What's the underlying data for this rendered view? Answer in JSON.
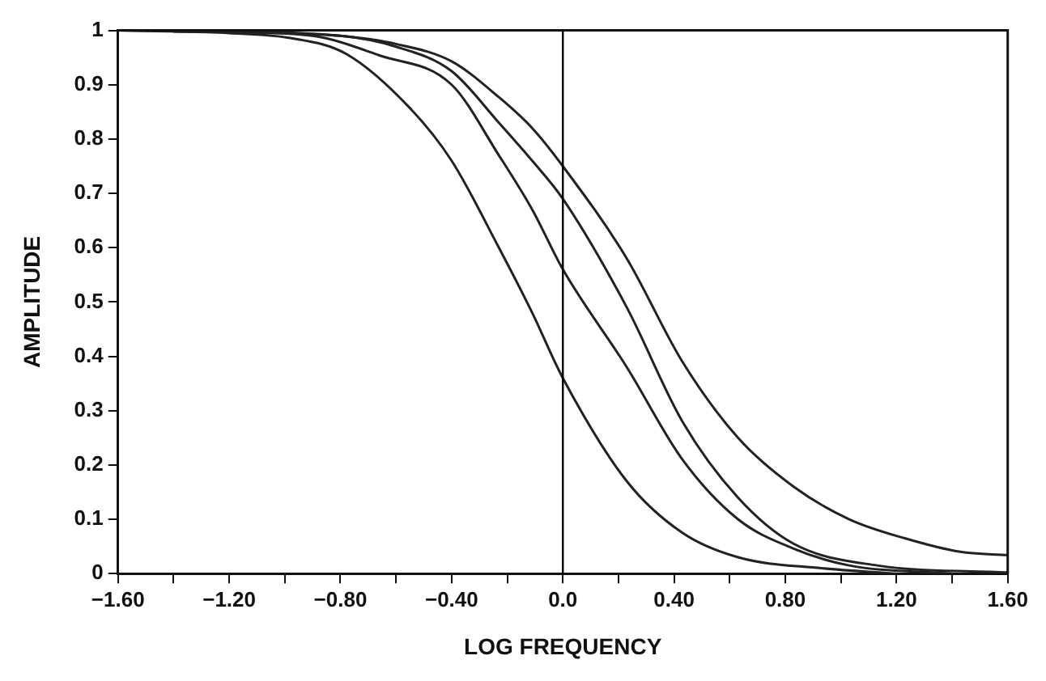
{
  "chart_data": {
    "type": "line",
    "xlabel": "LOG FREQUENCY",
    "ylabel": "AMPLITUDE",
    "xlim": [
      -1.6,
      1.6
    ],
    "ylim": [
      0,
      1
    ],
    "xticks": [
      {
        "value": -1.6,
        "label": "−1.60"
      },
      {
        "value": -1.4,
        "label": null
      },
      {
        "value": -1.2,
        "label": "−1.20"
      },
      {
        "value": -1.0,
        "label": null
      },
      {
        "value": -0.8,
        "label": "−0.80"
      },
      {
        "value": -0.6,
        "label": null
      },
      {
        "value": -0.4,
        "label": "−0.40"
      },
      {
        "value": -0.2,
        "label": null
      },
      {
        "value": 0,
        "label": "0.0"
      },
      {
        "value": 0.2,
        "label": null
      },
      {
        "value": 0.4,
        "label": "0.40"
      },
      {
        "value": 0.6,
        "label": null
      },
      {
        "value": 0.8,
        "label": "0.80"
      },
      {
        "value": 1.0,
        "label": null
      },
      {
        "value": 1.2,
        "label": "1.20"
      },
      {
        "value": 1.4,
        "label": null
      },
      {
        "value": 1.6,
        "label": "1.60"
      }
    ],
    "yticks": [
      0,
      0.1,
      0.2,
      0.3,
      0.4,
      0.5,
      0.6,
      0.7,
      0.8,
      0.9,
      1
    ],
    "grid": false,
    "legend": false,
    "marker": "none",
    "line_style": "solid",
    "ref_lines": [
      {
        "axis": "x",
        "value": 0,
        "color": "#000000"
      }
    ],
    "series": [
      {
        "color": "#222222",
        "x": [
          -1.6,
          -1.2,
          -0.98,
          -0.78,
          -0.55,
          -0.4,
          -0.23,
          -0.11,
          0,
          0.23,
          0.43,
          0.63,
          0.93,
          1.2
        ],
        "values": [
          1,
          0.995,
          0.986,
          0.957,
          0.857,
          0.76,
          0.6,
          0.48,
          0.36,
          0.17,
          0.075,
          0.03,
          0.01,
          0
        ]
      },
      {
        "color": "#222222",
        "x": [
          -1.4,
          -1.2,
          -0.9,
          -0.66,
          -0.4,
          -0.23,
          -0.11,
          0,
          0.23,
          0.43,
          0.63,
          0.83,
          1.03,
          1.4
        ],
        "values": [
          0.998,
          0.997,
          0.99,
          0.954,
          0.9,
          0.77,
          0.67,
          0.56,
          0.38,
          0.21,
          0.1,
          0.046,
          0.015,
          0
        ]
      },
      {
        "color": "#222222",
        "x": [
          -1.2,
          -0.8,
          -0.6,
          -0.4,
          -0.23,
          -0.11,
          0,
          0.23,
          0.43,
          0.63,
          0.83,
          1.13,
          1.6
        ],
        "values": [
          0.997,
          0.99,
          0.97,
          0.925,
          0.83,
          0.76,
          0.69,
          0.49,
          0.28,
          0.14,
          0.055,
          0.015,
          0.002
        ]
      },
      {
        "color": "#222222",
        "x": [
          -1.6,
          -1.2,
          -0.8,
          -0.6,
          -0.4,
          -0.23,
          -0.11,
          0,
          0.23,
          0.43,
          0.63,
          0.83,
          1.03,
          1.23,
          1.43,
          1.6
        ],
        "values": [
          1,
          0.999,
          0.99,
          0.975,
          0.943,
          0.877,
          0.82,
          0.75,
          0.58,
          0.39,
          0.25,
          0.16,
          0.1,
          0.065,
          0.04,
          0.034
        ]
      }
    ]
  }
}
